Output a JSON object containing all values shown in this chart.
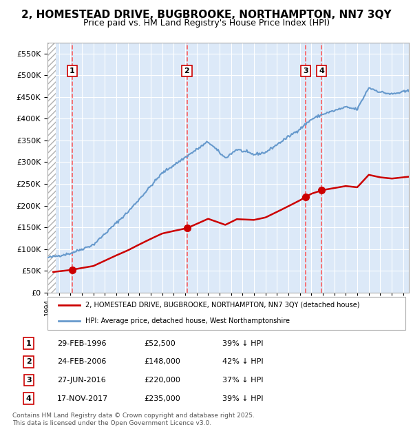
{
  "title": "2, HOMESTEAD DRIVE, BUGBROOKE, NORTHAMPTON, NN7 3QY",
  "subtitle": "Price paid vs. HM Land Registry's House Price Index (HPI)",
  "ylim": [
    0,
    575000
  ],
  "yticks": [
    0,
    50000,
    100000,
    150000,
    200000,
    250000,
    300000,
    350000,
    400000,
    450000,
    500000,
    550000
  ],
  "ytick_labels": [
    "£0",
    "£50K",
    "£100K",
    "£150K",
    "£200K",
    "£250K",
    "£300K",
    "£350K",
    "£400K",
    "£450K",
    "£500K",
    "£550K"
  ],
  "bg_color": "#dce9f8",
  "hatch_color": "#b0b0b0",
  "grid_color": "#ffffff",
  "sale_dates": [
    1996.16,
    2006.15,
    2016.49,
    2017.88
  ],
  "sale_prices": [
    52500,
    148000,
    220000,
    235000
  ],
  "sale_labels": [
    "1",
    "2",
    "3",
    "4"
  ],
  "vline_color": "#ff4444",
  "sale_marker_color": "#cc0000",
  "red_line_color": "#cc0000",
  "blue_line_color": "#6699cc",
  "legend_red_label": "2, HOMESTEAD DRIVE, BUGBROOKE, NORTHAMPTON, NN7 3QY (detached house)",
  "legend_blue_label": "HPI: Average price, detached house, West Northamptonshire",
  "table_rows": [
    [
      "1",
      "29-FEB-1996",
      "£52,500",
      "39% ↓ HPI"
    ],
    [
      "2",
      "24-FEB-2006",
      "£148,000",
      "42% ↓ HPI"
    ],
    [
      "3",
      "27-JUN-2016",
      "£220,000",
      "37% ↓ HPI"
    ],
    [
      "4",
      "17-NOV-2017",
      "£235,000",
      "39% ↓ HPI"
    ]
  ],
  "footnote": "Contains HM Land Registry data © Crown copyright and database right 2025.\nThis data is licensed under the Open Government Licence v3.0.",
  "xmin": 1994,
  "xmax": 2025.5
}
